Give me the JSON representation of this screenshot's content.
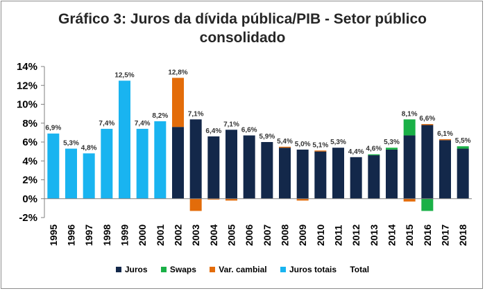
{
  "chart_data": {
    "type": "bar",
    "stacked": true,
    "title": "Gráfico 3: Juros da dívida pública/PIB - Setor público consolidado",
    "title_lines": [
      "Gráfico 3: Juros da dívida pública/PIB - Setor público",
      "consolidado"
    ],
    "xlabel": "",
    "ylabel": "",
    "ylim": [
      -2,
      14
    ],
    "yticks": [
      -2,
      0,
      2,
      4,
      6,
      8,
      10,
      12,
      14
    ],
    "ytick_labels": [
      "-2%",
      "0%",
      "2%",
      "4%",
      "6%",
      "8%",
      "10%",
      "12%",
      "14%"
    ],
    "categories": [
      "1995",
      "1996",
      "1997",
      "1998",
      "1999",
      "2000",
      "2001",
      "2002",
      "2003",
      "2004",
      "2005",
      "2006",
      "2007",
      "2008",
      "2009",
      "2010",
      "2011",
      "2012",
      "2013",
      "2014",
      "2015",
      "2016",
      "2017",
      "2018"
    ],
    "series": [
      {
        "name": "Juros",
        "color": "#13284a",
        "values": [
          null,
          null,
          null,
          null,
          null,
          null,
          null,
          7.6,
          8.4,
          6.6,
          7.3,
          6.7,
          6.0,
          5.4,
          5.2,
          5.0,
          5.4,
          4.4,
          4.6,
          5.2,
          6.7,
          7.8,
          6.2,
          5.3
        ]
      },
      {
        "name": "Swaps",
        "color": "#1ab047",
        "values": [
          null,
          null,
          null,
          null,
          null,
          null,
          null,
          0,
          0,
          0,
          0,
          0,
          0,
          0,
          0,
          0,
          0,
          0,
          0.1,
          0.2,
          1.7,
          -1.3,
          0,
          0.25
        ]
      },
      {
        "name": "Var. cambial",
        "color": "#e36c0a",
        "values": [
          null,
          null,
          null,
          null,
          null,
          null,
          null,
          5.2,
          -1.3,
          -0.1,
          -0.2,
          0,
          0,
          0.1,
          -0.2,
          0.1,
          0,
          0,
          0,
          0,
          -0.3,
          0.1,
          0.1,
          0
        ]
      },
      {
        "name": "Juros totais",
        "color": "#19b4f0",
        "values": [
          6.9,
          5.3,
          4.8,
          7.4,
          12.5,
          7.4,
          8.2,
          null,
          null,
          null,
          null,
          null,
          null,
          null,
          null,
          null,
          null,
          null,
          null,
          null,
          null,
          null,
          null,
          null
        ]
      },
      {
        "name": "Total",
        "color": "",
        "values": [
          6.9,
          5.3,
          4.8,
          7.4,
          12.5,
          7.4,
          8.2,
          12.8,
          7.1,
          6.4,
          7.1,
          6.6,
          5.9,
          5.4,
          5.0,
          5.1,
          5.3,
          4.4,
          4.6,
          5.3,
          8.1,
          6.6,
          6.1,
          5.5
        ]
      }
    ],
    "data_labels": [
      "6,9%",
      "5,3%",
      "4,8%",
      "7,4%",
      "12,5%",
      "7,4%",
      "8,2%",
      "12,8%",
      "7,1%",
      "6,4%",
      "7,1%",
      "6,6%",
      "5,9%",
      "5,4%",
      "5,0%",
      "5,1%",
      "5,3%",
      "4,4%",
      "4,6%",
      "5,3%",
      "8,1%",
      "6,6%",
      "6,1%",
      "5,5%"
    ],
    "legend_position": "bottom",
    "grid": false
  }
}
